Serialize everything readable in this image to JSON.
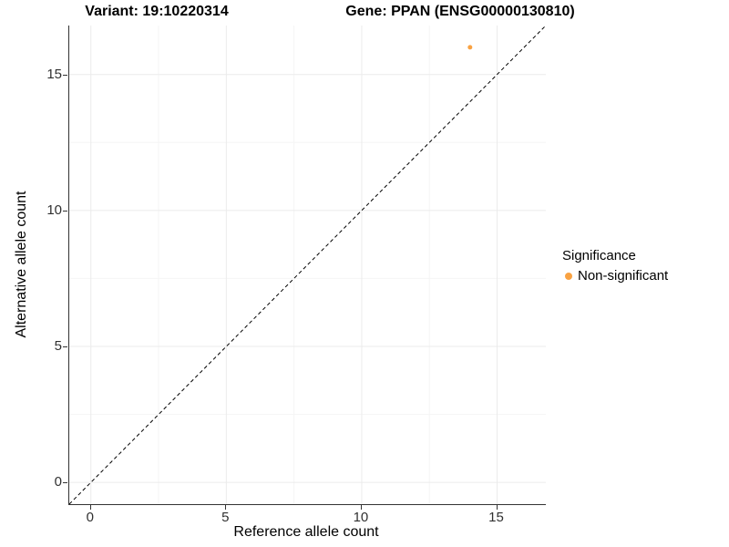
{
  "titles": {
    "variant": "Variant: 19:10220314",
    "gene": "Gene: PPAN (ENSG00000130810)"
  },
  "legend": {
    "title": "Significance",
    "items": [
      {
        "label": "Non-significant",
        "color": "#F9A242"
      }
    ]
  },
  "chart_data": {
    "type": "scatter",
    "title_left": "Variant: 19:10220314",
    "title_right": "Gene: PPAN (ENSG00000130810)",
    "xlabel": "Reference allele count",
    "ylabel": "Alternative allele count",
    "xlim": [
      -0.8,
      16.8
    ],
    "ylim": [
      -0.8,
      16.8
    ],
    "x_ticks": [
      0,
      5,
      10,
      15
    ],
    "y_ticks": [
      0,
      5,
      10,
      15
    ],
    "x_minor_ticks": [
      2.5,
      7.5,
      12.5
    ],
    "y_minor_ticks": [
      2.5,
      7.5,
      12.5
    ],
    "grid": true,
    "legend_position": "right",
    "series": [
      {
        "name": "Non-significant",
        "color": "#F9A242",
        "points": [
          {
            "x": 14,
            "y": 16
          }
        ]
      }
    ],
    "reference_line": {
      "type": "identity y=x",
      "style": "dashed",
      "color": "#000000",
      "from": [
        -0.8,
        -0.8
      ],
      "to": [
        16.8,
        16.8
      ]
    },
    "colors": {
      "background": "#FFFFFF",
      "major_grid": "#EBEBEB",
      "minor_grid": "#F5F5F5",
      "axis_line": "#333333",
      "tick_text": "#303030",
      "point": "#F9A242"
    }
  }
}
